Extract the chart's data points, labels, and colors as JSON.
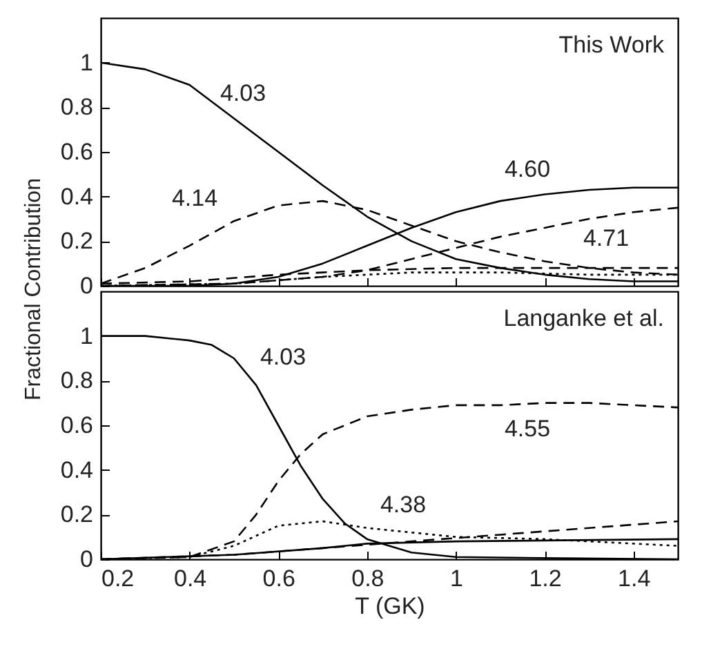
{
  "chart_data": [
    {
      "type": "line",
      "xlim": [
        0.2,
        1.5
      ],
      "xticks": [
        0.2,
        0.4,
        0.6,
        0.8,
        1,
        1.2,
        1.4
      ],
      "ylim": [
        0,
        1.2
      ],
      "yticks": [
        0,
        0.2,
        0.4,
        0.6,
        0.8,
        1
      ],
      "ylabel": "Fractional Contribution",
      "tick_labels": "y",
      "grid": false,
      "annotations": [
        "This Work"
      ],
      "series": [
        {
          "name": "4.03",
          "color": "#000000",
          "line_style": "solid",
          "x": [
            0.2,
            0.3,
            0.4,
            0.5,
            0.6,
            0.7,
            0.8,
            0.9,
            1.0,
            1.1,
            1.2,
            1.3,
            1.4,
            1.5
          ],
          "values": [
            1.0,
            0.97,
            0.9,
            0.75,
            0.6,
            0.45,
            0.31,
            0.2,
            0.12,
            0.08,
            0.05,
            0.03,
            0.02,
            0.02
          ]
        },
        {
          "name": "4.14",
          "color": "#000000",
          "line_style": "dashed",
          "x": [
            0.2,
            0.3,
            0.4,
            0.5,
            0.6,
            0.7,
            0.8,
            0.9,
            1.0,
            1.1,
            1.2,
            1.3,
            1.4,
            1.5
          ],
          "values": [
            0.01,
            0.08,
            0.18,
            0.29,
            0.36,
            0.38,
            0.34,
            0.27,
            0.2,
            0.15,
            0.11,
            0.08,
            0.06,
            0.05
          ]
        },
        {
          "name": "4.60",
          "color": "#000000",
          "line_style": "solid",
          "x": [
            0.2,
            0.4,
            0.5,
            0.6,
            0.7,
            0.8,
            0.9,
            1.0,
            1.1,
            1.2,
            1.3,
            1.4,
            1.5
          ],
          "values": [
            0,
            0,
            0.01,
            0.04,
            0.1,
            0.18,
            0.26,
            0.33,
            0.38,
            0.41,
            0.43,
            0.44,
            0.44
          ]
        },
        {
          "name": "4.71",
          "color": "#000000",
          "line_style": "dashed",
          "x": [
            0.2,
            0.5,
            0.7,
            0.8,
            0.9,
            1.0,
            1.1,
            1.2,
            1.3,
            1.4,
            1.5
          ],
          "values": [
            0,
            0.01,
            0.04,
            0.07,
            0.12,
            0.17,
            0.22,
            0.26,
            0.3,
            0.33,
            0.35
          ]
        },
        {
          "color": "#000000",
          "line_style": "dashed",
          "x": [
            0.2,
            0.4,
            0.6,
            0.7,
            0.8,
            1.0,
            1.2,
            1.5
          ],
          "values": [
            0.01,
            0.02,
            0.05,
            0.06,
            0.07,
            0.08,
            0.08,
            0.08
          ]
        },
        {
          "color": "#000000",
          "line_style": "dotted",
          "x": [
            0.2,
            0.5,
            0.7,
            0.9,
            1.1,
            1.3,
            1.5
          ],
          "values": [
            0,
            0.01,
            0.04,
            0.06,
            0.06,
            0.05,
            0.05
          ]
        }
      ]
    },
    {
      "type": "line",
      "xlim": [
        0.2,
        1.5
      ],
      "xticks": [
        0.2,
        0.4,
        0.6,
        0.8,
        1,
        1.2,
        1.4
      ],
      "ylim": [
        0,
        1.2
      ],
      "yticks": [
        0,
        0.2,
        0.4,
        0.6,
        0.8,
        1
      ],
      "xlabel": "T (GK)",
      "grid": false,
      "annotations": [
        "Langanke et al."
      ],
      "series": [
        {
          "name": "4.03",
          "color": "#000000",
          "line_style": "solid",
          "x": [
            0.2,
            0.3,
            0.4,
            0.45,
            0.5,
            0.55,
            0.6,
            0.65,
            0.7,
            0.75,
            0.8,
            0.9,
            1.0,
            1.2,
            1.5
          ],
          "values": [
            1.0,
            1.0,
            0.98,
            0.96,
            0.9,
            0.78,
            0.6,
            0.42,
            0.27,
            0.16,
            0.09,
            0.03,
            0.01,
            0.005,
            0
          ]
        },
        {
          "name": "4.55",
          "color": "#000000",
          "line_style": "dashed",
          "x": [
            0.2,
            0.4,
            0.5,
            0.55,
            0.6,
            0.65,
            0.7,
            0.8,
            0.9,
            1.0,
            1.1,
            1.2,
            1.3,
            1.4,
            1.5
          ],
          "values": [
            0,
            0.01,
            0.08,
            0.2,
            0.35,
            0.47,
            0.56,
            0.64,
            0.67,
            0.69,
            0.69,
            0.7,
            0.7,
            0.69,
            0.68
          ]
        },
        {
          "name": "4.38",
          "color": "#000000",
          "line_style": "dotted",
          "x": [
            0.2,
            0.4,
            0.5,
            0.6,
            0.7,
            0.8,
            0.9,
            1.0,
            1.2,
            1.5
          ],
          "values": [
            0,
            0.01,
            0.06,
            0.15,
            0.17,
            0.14,
            0.12,
            0.1,
            0.09,
            0.06
          ]
        },
        {
          "color": "#000000",
          "line_style": "dashed",
          "x": [
            0.2,
            0.5,
            0.7,
            0.9,
            1.1,
            1.3,
            1.5
          ],
          "values": [
            0,
            0.02,
            0.05,
            0.08,
            0.11,
            0.14,
            0.17
          ]
        },
        {
          "color": "#000000",
          "line_style": "solid",
          "x": [
            0.2,
            0.5,
            0.7,
            0.8,
            1.0,
            1.5
          ],
          "values": [
            0,
            0.02,
            0.05,
            0.07,
            0.08,
            0.09
          ]
        }
      ]
    }
  ]
}
